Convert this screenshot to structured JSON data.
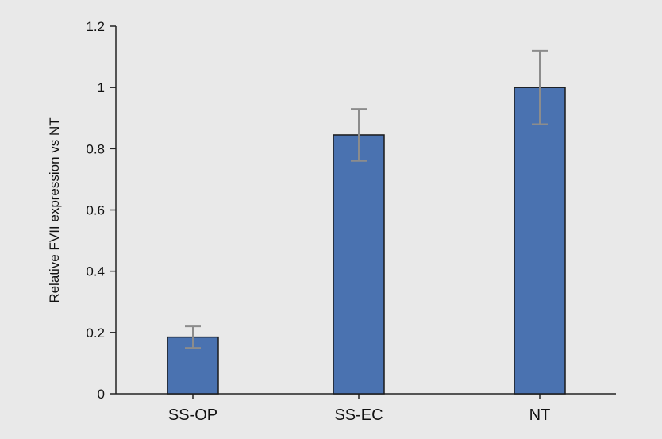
{
  "chart_data": {
    "type": "bar",
    "title": "",
    "xlabel": "",
    "ylabel": "Relative FVII expression vs NT",
    "ylim": [
      0,
      1.2
    ],
    "yticks": [
      "0",
      "0.2",
      "0.4",
      "0.6",
      "0.8",
      "1",
      "1.2"
    ],
    "categories": [
      "SS-OP",
      "SS-EC",
      "NT"
    ],
    "values": [
      0.185,
      0.845,
      1.0
    ],
    "error_upper": [
      0.22,
      0.93,
      1.12
    ],
    "error_lower": [
      0.15,
      0.76,
      0.88
    ],
    "grid": false,
    "legend": "none",
    "colors": {
      "bar_fill": "#4a72b0",
      "bar_stroke": "#1a1a1a",
      "error_bar": "#8c8c8c",
      "axis": "#222222",
      "background": "#e9e9e9"
    }
  }
}
